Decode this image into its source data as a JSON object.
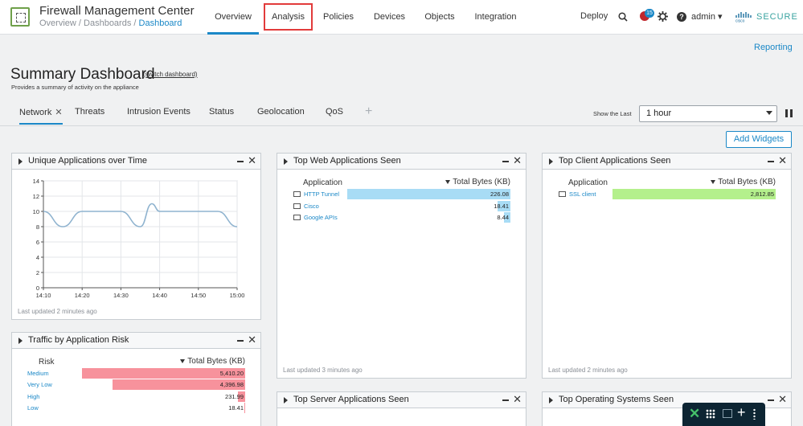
{
  "header": {
    "app_title": "Firewall Management Center",
    "breadcrumb": [
      "Overview",
      "Dashboards",
      "Dashboard"
    ],
    "nav": [
      "Overview",
      "Analysis",
      "Policies",
      "Devices",
      "Objects",
      "Integration"
    ],
    "active_nav": "Overview",
    "highlighted_nav": "Analysis",
    "deploy": "Deploy",
    "notifications_count": "15",
    "user": "admin",
    "brand": "SECURE"
  },
  "page": {
    "reporting_link": "Reporting",
    "title": "Summary Dashboard",
    "switch_link": "(switch dashboard)",
    "subtitle": "Provides a summary of activity on the appliance",
    "tabs": [
      "Network",
      "Threats",
      "Intrusion Events",
      "Status",
      "Geolocation",
      "QoS"
    ],
    "active_tab": "Network",
    "show_last_label": "Show the Last",
    "time_range": "1 hour",
    "add_widgets": "Add Widgets"
  },
  "widgets": {
    "unique_apps": {
      "title": "Unique Applications over Time",
      "footer": "Last updated 2 minutes ago"
    },
    "web_apps": {
      "title": "Top Web Applications Seen",
      "col_app": "Application",
      "col_bytes": "Total Bytes (KB)",
      "rows": [
        {
          "name": "HTTP Tunnel",
          "value": "226.08",
          "fraction": 1.0
        },
        {
          "name": "Cisco",
          "value": "18.41",
          "fraction": 0.081
        },
        {
          "name": "Google APIs",
          "value": "8.44",
          "fraction": 0.037
        }
      ],
      "footer": "Last updated 3 minutes ago",
      "bar_color": "#a8dcf5"
    },
    "client_apps": {
      "title": "Top Client Applications Seen",
      "col_app": "Application",
      "col_bytes": "Total Bytes (KB)",
      "rows": [
        {
          "name": "SSL client",
          "value": "2,812.85",
          "fraction": 1.0
        }
      ],
      "footer": "Last updated 2 minutes ago",
      "bar_color": "#b4f08c"
    },
    "app_risk": {
      "title": "Traffic by Application Risk",
      "col_app": "Risk",
      "col_bytes": "Total Bytes (KB)",
      "rows": [
        {
          "name": "Medium",
          "value": "5,410.20",
          "fraction": 1.0
        },
        {
          "name": "Very Low",
          "value": "4,396.98",
          "fraction": 0.813
        },
        {
          "name": "High",
          "value": "231.99",
          "fraction": 0.043
        },
        {
          "name": "Low",
          "value": "18.41",
          "fraction": 0.003
        }
      ],
      "bar_color": "#f7929c"
    },
    "server_apps": {
      "title": "Top Server Applications Seen"
    },
    "operating_systems": {
      "title": "Top Operating Systems Seen"
    }
  },
  "chart_data": {
    "type": "line",
    "title": "Unique Applications over Time",
    "x": [
      "14:10",
      "14:15",
      "14:20",
      "14:25",
      "14:30",
      "14:35",
      "14:38",
      "14:40",
      "14:45",
      "14:50",
      "14:55",
      "15:00"
    ],
    "values": [
      10,
      8,
      10,
      10,
      10,
      8,
      11,
      10,
      10,
      10,
      10,
      8
    ],
    "xticks": [
      "14:10",
      "14:20",
      "14:30",
      "14:40",
      "14:50",
      "15:00"
    ],
    "yticks": [
      "0",
      "2",
      "4",
      "6",
      "8",
      "10",
      "12",
      "14"
    ],
    "ylim": [
      0,
      14
    ],
    "grid": true,
    "line_color": "#8fb3cf"
  }
}
